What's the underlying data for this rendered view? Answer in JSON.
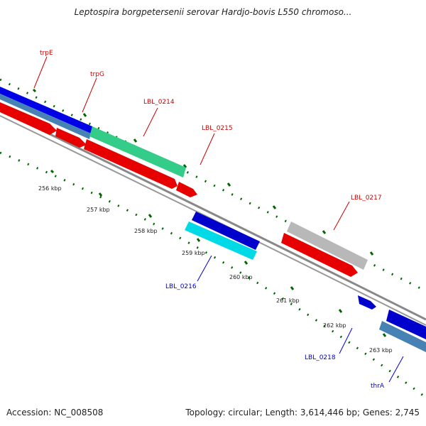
{
  "title": "Leptospira borgpetersenii serovar Hardjo-bovis L550 chromoso...",
  "footer": {
    "accession": "Accession: NC_008508",
    "topology": "Topology: circular; Length: 3,614,446 bp; Genes: 2,745"
  },
  "scale_labels": [
    "256 kbp",
    "257 kbp",
    "258 kbp",
    "259 kbp",
    "260 kbp",
    "261 kbp",
    "262 kbp",
    "263 kbp"
  ],
  "gene_labels": {
    "trpE": "trpE",
    "trpG": "trpG",
    "LBL_0214": "LBL_0214",
    "LBL_0215": "LBL_0215",
    "LBL_0216": "LBL_0216",
    "LBL_0217": "LBL_0217",
    "LBL_0218": "LBL_0218",
    "thrA": "thrA"
  },
  "colors": {
    "forward_label": "#cc0000",
    "reverse_label": "#0000cc",
    "tick": "#006600",
    "backbone": "#888888"
  }
}
